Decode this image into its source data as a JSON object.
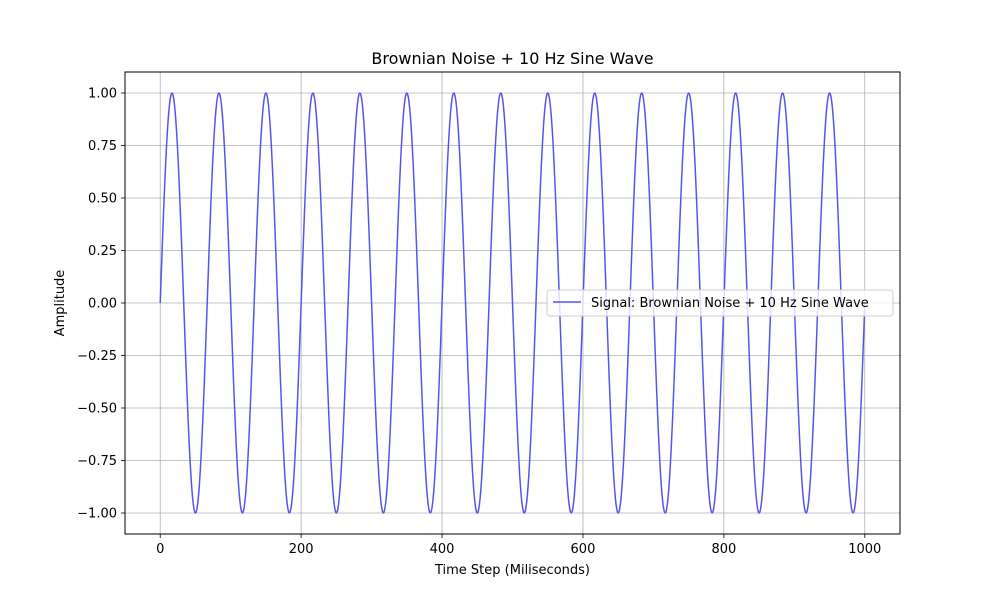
{
  "chart_data": {
    "type": "line",
    "title": "Brownian Noise + 10 Hz Sine Wave",
    "xlabel": "Time Step (Miliseconds)",
    "ylabel": "Amplitude",
    "xlim": [
      -50,
      1050
    ],
    "ylim": [
      -1.1,
      1.1
    ],
    "x_ticks": [
      0,
      200,
      400,
      600,
      800,
      1000
    ],
    "y_ticks": [
      1.0,
      0.75,
      0.5,
      0.25,
      0.0,
      -0.25,
      -0.5,
      -0.75,
      -1.0
    ],
    "x_tick_labels": [
      "0",
      "200",
      "400",
      "600",
      "800",
      "1000"
    ],
    "y_tick_labels": [
      "1.00",
      "0.75",
      "0.50",
      "0.25",
      "0.00",
      "−0.25",
      "−0.50",
      "−0.75",
      "−1.00"
    ],
    "grid": true,
    "legend_position": "center-right",
    "series": [
      {
        "name": "Signal: Brownian Noise + 10 Hz Sine Wave",
        "color": "#5555ee",
        "function": "sine",
        "amplitude": 1.0,
        "period": 66.67,
        "x_start": 0,
        "x_end": 1000,
        "sample_step": 1
      }
    ]
  }
}
